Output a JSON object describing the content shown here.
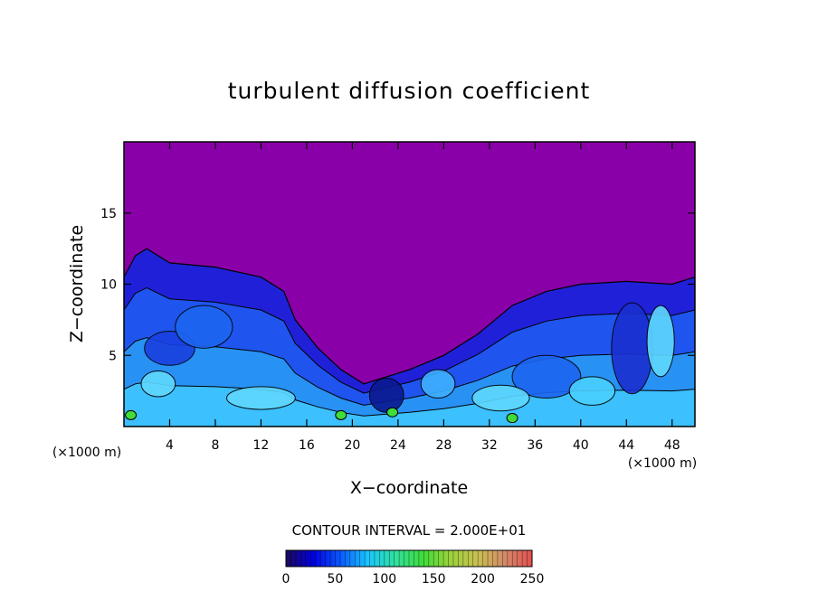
{
  "chart_data": {
    "type": "heatmap",
    "title": "turbulent diffusion coefficient",
    "xlabel": "X−coordinate",
    "ylabel": "Z−coordinate",
    "x_unit_left": "(×1000 m)",
    "x_unit_right": "(×1000 m)",
    "xlim": [
      0,
      50
    ],
    "ylim": [
      0,
      20
    ],
    "x_ticks": [
      4,
      8,
      12,
      16,
      20,
      24,
      28,
      32,
      36,
      40,
      44,
      48
    ],
    "y_ticks": [
      5,
      10,
      15
    ],
    "contour_interval_label": "CONTOUR INTERVAL = 2.000E+01",
    "colorbar": {
      "range": [
        0,
        250
      ],
      "ticks": [
        0,
        50,
        100,
        150,
        200,
        250
      ],
      "colors": [
        "#1c0a5a",
        "#0000e0",
        "#0a5aff",
        "#19c6ff",
        "#30e0a0",
        "#3fdc3a",
        "#9ad23c",
        "#c8c050",
        "#d48a6a",
        "#e25050"
      ]
    },
    "background_color": "#8a00a8",
    "boundary_layer_top_profile": [
      [
        0,
        10.5
      ],
      [
        1,
        12.0
      ],
      [
        2,
        12.5
      ],
      [
        4,
        11.5
      ],
      [
        8,
        11.2
      ],
      [
        12,
        10.5
      ],
      [
        14,
        9.5
      ],
      [
        15,
        7.5
      ],
      [
        17,
        5.5
      ],
      [
        19,
        4.0
      ],
      [
        21,
        3.0
      ],
      [
        23,
        3.5
      ],
      [
        25,
        4.0
      ],
      [
        28,
        5.0
      ],
      [
        31,
        6.5
      ],
      [
        34,
        8.5
      ],
      [
        37,
        9.5
      ],
      [
        40,
        10.0
      ],
      [
        44,
        10.2
      ],
      [
        48,
        10.0
      ],
      [
        50,
        10.5
      ]
    ]
  }
}
